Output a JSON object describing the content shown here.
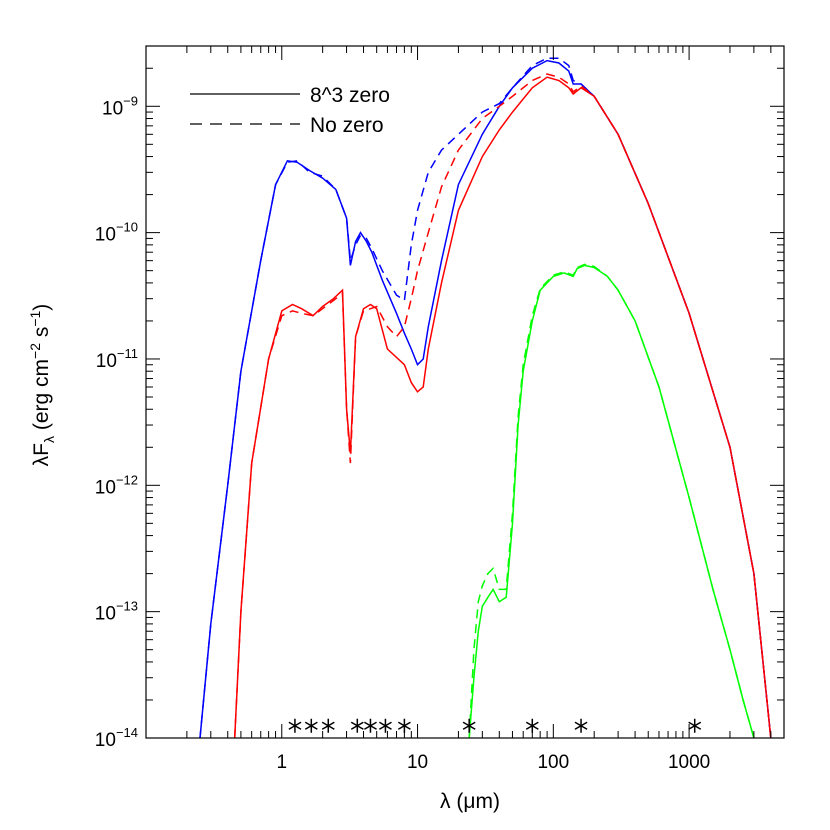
{
  "chart_data": {
    "type": "line",
    "xlabel": "λ (μm)",
    "ylabel": "λF_λ (erg cm^-2 s^-1)",
    "x_scale": "log",
    "y_scale": "log",
    "xlim": [
      0.1,
      5000
    ],
    "ylim": [
      1e-14,
      3e-09
    ],
    "x_ticks": [
      {
        "value": 1,
        "label": "1"
      },
      {
        "value": 10,
        "label": "10"
      },
      {
        "value": 100,
        "label": "100"
      },
      {
        "value": 1000,
        "label": "1000"
      }
    ],
    "y_ticks": [
      {
        "value": 1e-14,
        "exp": "-14"
      },
      {
        "value": 1e-13,
        "exp": "-13"
      },
      {
        "value": 1e-12,
        "exp": "-12"
      },
      {
        "value": 1e-11,
        "exp": "-11"
      },
      {
        "value": 1e-10,
        "exp": "-10"
      },
      {
        "value": 1e-09,
        "exp": "-9"
      }
    ],
    "legend": {
      "position": "top-left",
      "entries": [
        {
          "label": "8^3 zero",
          "dash": "solid"
        },
        {
          "label": "No zero",
          "dash": "dashed"
        }
      ]
    },
    "colors": {
      "blue": "#0000ff",
      "red": "#ff0000",
      "green": "#00ff00",
      "axis": "#000000"
    },
    "series": [
      {
        "color": "blue",
        "dash": "solid",
        "x": [
          0.25,
          0.3,
          0.4,
          0.5,
          0.7,
          0.9,
          1.1,
          1.3,
          1.6,
          2.0,
          2.5,
          3.0,
          3.2,
          3.5,
          3.8,
          4.2,
          4.6,
          5.5,
          7,
          8,
          9,
          10,
          11,
          12,
          15,
          20,
          30,
          40,
          50,
          70,
          90,
          110,
          130,
          140,
          160,
          200,
          300,
          500,
          1000,
          2000,
          3000,
          4000
        ],
        "y": [
          1e-14,
          8e-14,
          1e-12,
          8e-12,
          6e-11,
          2.4e-10,
          3.7e-10,
          3.6e-10,
          3.1e-10,
          2.7e-10,
          2.2e-10,
          1.3e-10,
          5.5e-11,
          8.5e-11,
          1e-10,
          8.5e-11,
          7e-11,
          4.2e-11,
          2.3e-11,
          1.6e-11,
          1.2e-11,
          9e-12,
          1e-11,
          1.8e-11,
          6e-11,
          2.4e-10,
          6e-10,
          1e-09,
          1.4e-09,
          2e-09,
          2.3e-09,
          2.2e-09,
          1.9e-09,
          1.5e-09,
          1.5e-09,
          1.2e-09,
          6e-10,
          1.7e-10,
          2.3e-11,
          2e-12,
          2e-13,
          1e-14
        ]
      },
      {
        "color": "blue",
        "dash": "dashed",
        "x": [
          0.25,
          0.3,
          0.4,
          0.5,
          0.7,
          0.9,
          1.1,
          1.3,
          1.6,
          2.0,
          2.5,
          3.0,
          3.2,
          3.5,
          3.8,
          4.2,
          4.6,
          5.5,
          7,
          8,
          9,
          10,
          12,
          15,
          20,
          30,
          40,
          50,
          70,
          90,
          110,
          130,
          140,
          160,
          200,
          300,
          500,
          1000,
          2000,
          3000,
          4000
        ],
        "y": [
          1e-14,
          8e-14,
          1e-12,
          8e-12,
          6e-11,
          2.4e-10,
          3.6e-10,
          3.7e-10,
          3e-10,
          2.8e-10,
          2.2e-10,
          1.3e-10,
          6e-11,
          8e-11,
          9.5e-11,
          9e-11,
          7.5e-11,
          5e-11,
          3.2e-11,
          2.9e-11,
          8e-11,
          1.5e-10,
          3e-10,
          4.5e-10,
          6e-10,
          9e-10,
          1.05e-09,
          1.4e-09,
          2.1e-09,
          2.4e-09,
          2.4e-09,
          2.1e-09,
          1.6e-09,
          1.5e-09,
          1.2e-09,
          6e-10,
          1.7e-10,
          2.3e-11,
          2e-12,
          2e-13,
          1e-14
        ]
      },
      {
        "color": "red",
        "dash": "solid",
        "x": [
          0.45,
          0.5,
          0.6,
          0.8,
          1.0,
          1.2,
          1.4,
          1.7,
          2.0,
          2.4,
          2.8,
          3.0,
          3.2,
          3.5,
          4.0,
          4.5,
          5,
          6,
          8,
          9,
          10,
          11,
          12,
          15,
          20,
          30,
          40,
          50,
          70,
          90,
          110,
          130,
          140,
          160,
          200,
          300,
          500,
          1000,
          2000,
          3000,
          4000
        ],
        "y": [
          1e-14,
          1e-13,
          1.5e-12,
          1e-11,
          2.4e-11,
          2.7e-11,
          2.5e-11,
          2.2e-11,
          2.6e-11,
          3e-11,
          3.5e-11,
          4e-12,
          1.8e-12,
          1.5e-11,
          2.5e-11,
          2.7e-11,
          2.5e-11,
          1.2e-11,
          9e-12,
          6.5e-12,
          5.5e-12,
          6e-12,
          1.2e-11,
          4e-11,
          1.5e-10,
          4e-10,
          6.5e-10,
          9e-10,
          1.4e-09,
          1.7e-09,
          1.6e-09,
          1.4e-09,
          1.25e-09,
          1.4e-09,
          1.2e-09,
          6e-10,
          1.7e-10,
          2.3e-11,
          2e-12,
          2e-13,
          1e-14
        ]
      },
      {
        "color": "red",
        "dash": "dashed",
        "x": [
          0.45,
          0.5,
          0.6,
          0.8,
          1.0,
          1.2,
          1.4,
          1.7,
          2.0,
          2.4,
          2.8,
          3.0,
          3.2,
          3.5,
          4.0,
          4.5,
          5,
          6,
          7,
          8,
          9,
          10,
          12,
          15,
          20,
          30,
          40,
          50,
          70,
          90,
          110,
          130,
          140,
          160,
          200,
          300,
          500,
          1000,
          2000,
          3000,
          4000
        ],
        "y": [
          1e-14,
          1e-13,
          1.5e-12,
          1e-11,
          2.2e-11,
          2.4e-11,
          2.3e-11,
          2.2e-11,
          2.5e-11,
          2.9e-11,
          3.3e-11,
          4e-12,
          1.5e-12,
          1.5e-11,
          2.4e-11,
          2.5e-11,
          2.6e-11,
          1.8e-11,
          1.5e-11,
          1.8e-11,
          3e-11,
          5e-11,
          1e-10,
          2.3e-10,
          4.5e-10,
          8e-10,
          1e-09,
          1.2e-09,
          1.6e-09,
          1.8e-09,
          1.7e-09,
          1.5e-09,
          1.3e-09,
          1.45e-09,
          1.2e-09,
          6e-10,
          1.7e-10,
          2.3e-11,
          2e-12,
          2e-13,
          1e-14
        ]
      },
      {
        "color": "green",
        "dash": "solid",
        "x": [
          24,
          26,
          28,
          30,
          33,
          36,
          40,
          45,
          50,
          55,
          60,
          70,
          80,
          100,
          120,
          140,
          150,
          170,
          200,
          250,
          300,
          400,
          600,
          1000,
          1500,
          2000,
          2500,
          3000
        ],
        "y": [
          1e-14,
          3e-14,
          7e-14,
          1.1e-13,
          1.3e-13,
          1.5e-13,
          1.2e-13,
          1.3e-13,
          5e-13,
          3e-12,
          8e-12,
          2e-11,
          3.5e-11,
          4.5e-11,
          4.8e-11,
          4.5e-11,
          5.2e-11,
          5.5e-11,
          5.3e-11,
          4.5e-11,
          3.5e-11,
          2e-11,
          6e-12,
          8e-13,
          1.5e-13,
          5e-14,
          2e-14,
          1e-14
        ]
      },
      {
        "color": "green",
        "dash": "dashed",
        "x": [
          24,
          26,
          28,
          30,
          33,
          36,
          40,
          45,
          50,
          55,
          60,
          70,
          80,
          100,
          120,
          140,
          150,
          170,
          200,
          250,
          300,
          400,
          600,
          1000,
          1500,
          2000,
          2500,
          3000
        ],
        "y": [
          1e-14,
          5e-14,
          1.2e-13,
          1.6e-13,
          2e-13,
          2.2e-13,
          1.5e-13,
          1.5e-13,
          6e-13,
          3.5e-12,
          9e-12,
          2.2e-11,
          3.6e-11,
          4.6e-11,
          4.9e-11,
          4.6e-11,
          5.3e-11,
          5.6e-11,
          5.4e-11,
          4.5e-11,
          3.5e-11,
          2e-11,
          6e-12,
          8e-13,
          1.5e-13,
          5e-14,
          2e-14,
          1e-14
        ]
      }
    ],
    "observations": {
      "symbol": "asterisk",
      "y": 1.25e-14,
      "x": [
        1.25,
        1.65,
        2.2,
        3.6,
        4.5,
        5.8,
        8.0,
        24,
        70,
        160,
        1100
      ]
    }
  }
}
